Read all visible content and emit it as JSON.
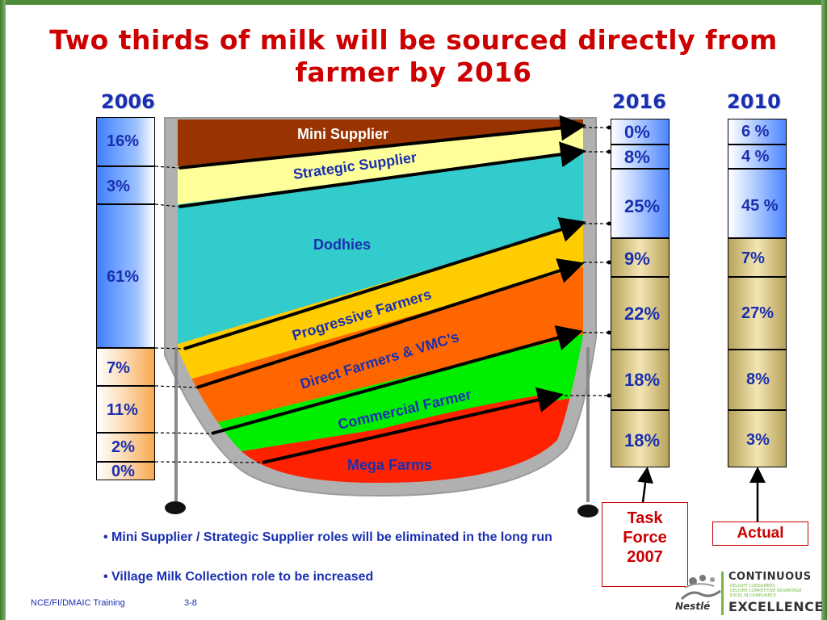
{
  "title": "Two thirds of milk will be sourced directly from farmer by 2016",
  "year_labels": {
    "left": "2006",
    "middle": "2016",
    "right": "2010"
  },
  "col_2006": [
    "16%",
    "3%",
    "61%",
    "7%",
    "11%",
    "2%",
    "0%"
  ],
  "col_2016": [
    "0%",
    "8%",
    "25%",
    "9%",
    "22%",
    "18%",
    "18%"
  ],
  "col_2010": [
    "6 %",
    "4 %",
    "45 %",
    "7%",
    "27%",
    "8%",
    "3%"
  ],
  "bands": [
    "Mini Supplier",
    "Strategic Supplier",
    "Dodhies",
    "Progressive Farmers",
    "Direct Farmers & VMC’s",
    "Commercial Farmer",
    "Mega Farms"
  ],
  "bullets": [
    "• Mini Supplier / Strategic Supplier roles will be eliminated  in the long run",
    "• Village Milk Collection role to be increased"
  ],
  "task_force": [
    "Task",
    "Force",
    "2007"
  ],
  "actual": "Actual",
  "footer": {
    "left": "NCE/FI/DMAIC Training",
    "page": "3-8"
  },
  "logo": {
    "brand": "Nestlé",
    "line1": "CONTINUOUS",
    "line2": "EXCELLENCE",
    "tagline": [
      "DELIGHT CONSUMERS",
      "DELIVER COMPETITIVE ADVANTAGE",
      "EXCEL IN COMPLIANCE"
    ]
  },
  "colors": {
    "title": "#cc0000",
    "text": "#1a2fb0",
    "mini": "#993300",
    "strategic": "#ffff99",
    "dodhies": "#33cccc",
    "progressive": "#ffcc00",
    "direct": "#ff6600",
    "commercial": "#00ee00",
    "mega": "#ff2200",
    "vat": "#b0b0b0"
  }
}
